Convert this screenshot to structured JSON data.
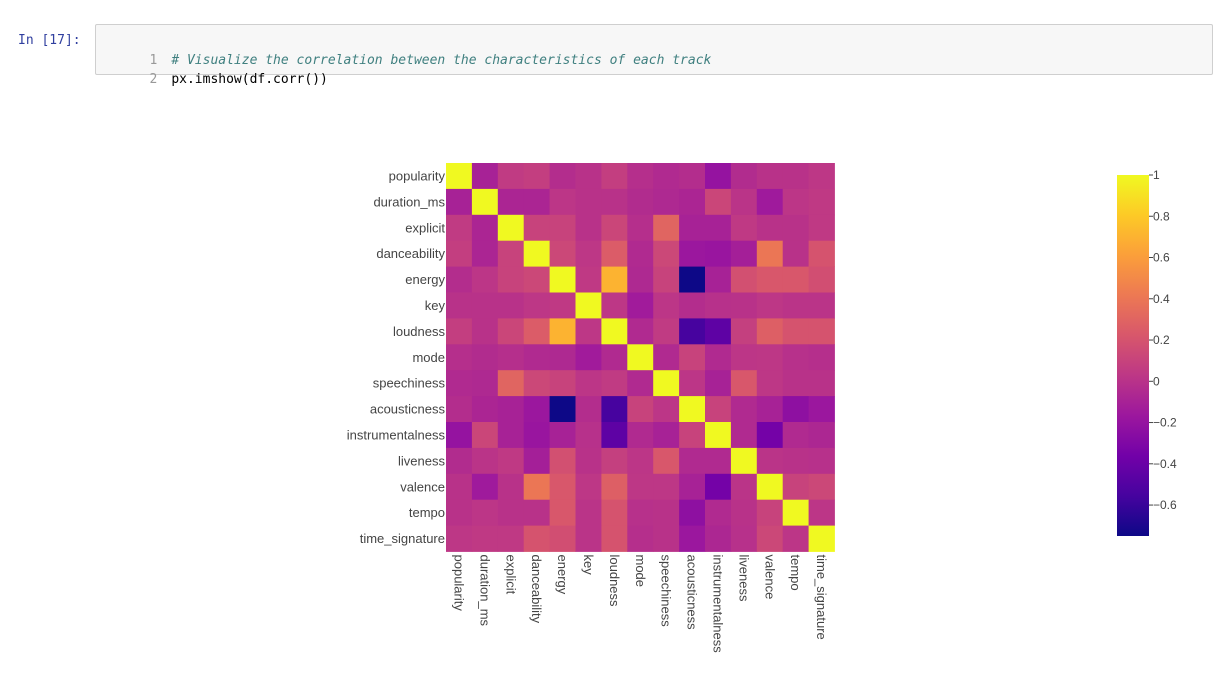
{
  "cell": {
    "prompt": "In [17]:",
    "lines": [
      {
        "number": "1",
        "text": "# Visualize the correlation between the characteristics of each track",
        "kind": "comment"
      },
      {
        "number": "2",
        "text": "px.imshow(df.corr())",
        "kind": "code"
      }
    ]
  },
  "chart_data": {
    "type": "heatmap",
    "title": "",
    "xlabel": "",
    "ylabel": "",
    "labels": [
      "popularity",
      "duration_ms",
      "explicit",
      "danceability",
      "energy",
      "key",
      "loudness",
      "mode",
      "speechiness",
      "acousticness",
      "instrumentalness",
      "liveness",
      "valence",
      "tempo",
      "time_signature"
    ],
    "values": [
      [
        1.0,
        -0.1,
        0.05,
        0.07,
        -0.03,
        0.0,
        0.07,
        -0.02,
        -0.05,
        -0.03,
        -0.2,
        -0.04,
        0.0,
        0.0,
        0.03
      ],
      [
        -0.1,
        1.0,
        -0.08,
        -0.08,
        0.02,
        0.0,
        0.0,
        -0.04,
        -0.06,
        -0.08,
        0.12,
        0.01,
        -0.15,
        0.02,
        0.04
      ],
      [
        0.05,
        -0.08,
        1.0,
        0.1,
        0.1,
        0.0,
        0.12,
        -0.02,
        0.3,
        -0.1,
        -0.1,
        0.04,
        0.0,
        0.0,
        0.04
      ],
      [
        0.07,
        -0.08,
        0.1,
        1.0,
        0.13,
        0.03,
        0.25,
        -0.05,
        0.13,
        -0.17,
        -0.18,
        -0.12,
        0.4,
        0.0,
        0.2
      ],
      [
        -0.03,
        0.02,
        0.1,
        0.13,
        1.0,
        0.04,
        0.7,
        -0.06,
        0.1,
        -0.75,
        -0.1,
        0.18,
        0.22,
        0.22,
        0.17
      ],
      [
        0.0,
        0.0,
        0.0,
        0.03,
        0.04,
        1.0,
        0.03,
        -0.14,
        0.02,
        -0.03,
        -0.01,
        0.0,
        0.03,
        0.01,
        0.01
      ],
      [
        0.07,
        0.0,
        0.12,
        0.25,
        0.7,
        0.03,
        1.0,
        -0.05,
        0.05,
        -0.55,
        -0.45,
        0.08,
        0.27,
        0.2,
        0.2
      ],
      [
        -0.02,
        -0.04,
        -0.02,
        -0.05,
        -0.06,
        -0.14,
        -0.05,
        1.0,
        -0.05,
        0.1,
        -0.05,
        0.02,
        0.03,
        -0.01,
        -0.02
      ],
      [
        -0.05,
        -0.06,
        0.3,
        0.13,
        0.1,
        0.02,
        0.05,
        -0.05,
        1.0,
        0.02,
        -0.1,
        0.22,
        0.03,
        0.0,
        0.0
      ],
      [
        -0.03,
        -0.08,
        -0.1,
        -0.17,
        -0.75,
        -0.03,
        -0.55,
        0.1,
        0.02,
        1.0,
        0.1,
        -0.05,
        -0.1,
        -0.23,
        -0.17
      ],
      [
        -0.2,
        0.12,
        -0.1,
        -0.18,
        -0.1,
        -0.01,
        -0.45,
        -0.05,
        -0.1,
        0.1,
        1.0,
        -0.05,
        -0.35,
        -0.05,
        -0.07
      ],
      [
        -0.04,
        0.01,
        0.04,
        -0.12,
        0.18,
        0.0,
        0.08,
        0.02,
        0.22,
        -0.05,
        -0.05,
        1.0,
        0.01,
        0.0,
        -0.01
      ],
      [
        0.0,
        -0.15,
        0.0,
        0.4,
        0.22,
        0.03,
        0.27,
        0.03,
        0.03,
        -0.1,
        -0.35,
        0.01,
        1.0,
        0.1,
        0.13
      ],
      [
        0.0,
        0.02,
        0.0,
        0.0,
        0.22,
        0.01,
        0.2,
        -0.01,
        0.0,
        -0.23,
        -0.05,
        0.0,
        0.1,
        1.0,
        0.02
      ],
      [
        0.03,
        0.04,
        0.04,
        0.2,
        0.17,
        0.01,
        0.2,
        -0.02,
        0.0,
        -0.17,
        -0.07,
        -0.01,
        0.13,
        0.02,
        1.0
      ]
    ],
    "zmin": -0.75,
    "zmax": 1.0,
    "colorscale": [
      "#0d0887",
      "#46039f",
      "#7201a8",
      "#9c179e",
      "#bd3786",
      "#d8576b",
      "#ed7953",
      "#fb9f3a",
      "#fdca26",
      "#f0f921"
    ],
    "colorbar": {
      "ticks": [
        "1",
        "0.8",
        "0.6",
        "0.4",
        "0.2",
        "0",
        "−0.2",
        "−0.4",
        "−0.6"
      ],
      "tick_values": [
        1,
        0.8,
        0.6,
        0.4,
        0.2,
        0,
        -0.2,
        -0.4,
        -0.6
      ]
    }
  }
}
